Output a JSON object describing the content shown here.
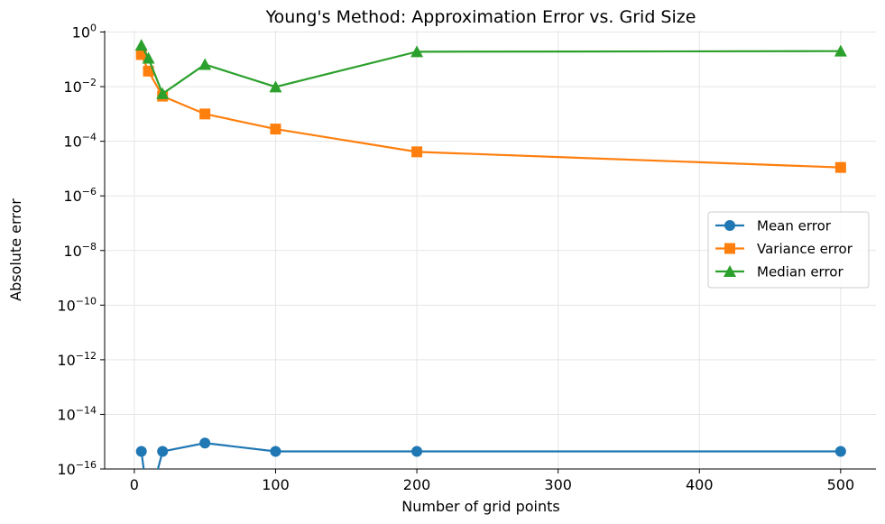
{
  "chart_data": {
    "type": "line",
    "title": "Young's Method: Approximation Error vs. Grid Size",
    "xlabel": "Number of grid points",
    "ylabel": "Absolute error",
    "xlim": [
      -21,
      525
    ],
    "xticks": [
      0,
      100,
      200,
      300,
      400,
      500
    ],
    "y_scale": "log",
    "ylim_exp": [
      -16,
      0.05
    ],
    "yticks_exp": [
      0,
      -2,
      -4,
      -6,
      -8,
      -10,
      -12,
      -14,
      -16
    ],
    "grid": true,
    "legend_position": "center-right",
    "series": [
      {
        "name": "Mean error",
        "color": "#1f77b4",
        "marker": "circle",
        "x": [
          5,
          10,
          20,
          50,
          100,
          200,
          500
        ],
        "y": [
          4.4e-16,
          0,
          4.4e-16,
          8.9e-16,
          4.4e-16,
          4.4e-16,
          4.4e-16
        ]
      },
      {
        "name": "Variance error",
        "color": "#ff7f0e",
        "marker": "square",
        "x": [
          5,
          10,
          20,
          50,
          100,
          200,
          500
        ],
        "y": [
          0.15,
          0.037,
          0.0045,
          0.001,
          0.00028,
          4.1e-05,
          1.1e-05
        ]
      },
      {
        "name": "Median error",
        "color": "#2ca02c",
        "marker": "triangle",
        "x": [
          5,
          10,
          20,
          50,
          100,
          200,
          500
        ],
        "y": [
          0.33,
          0.11,
          0.0055,
          0.065,
          0.0098,
          0.19,
          0.2
        ]
      }
    ]
  }
}
